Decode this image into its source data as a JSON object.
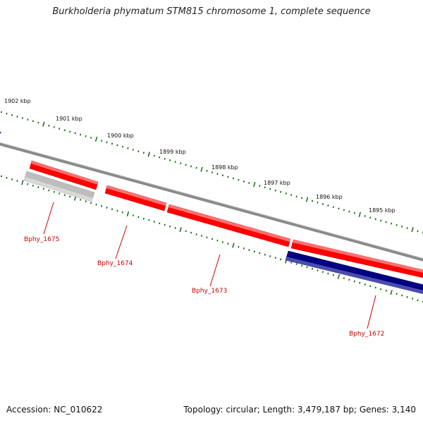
{
  "title": "Burkholderia phymatum STM815 chromosome 1, complete sequence",
  "footer": {
    "accession": "Accession: NC_010622",
    "topology": "Topology: circular; Length: 3,479,187 bp; Genes: 3,140"
  },
  "colors": {
    "backbone": "#7a7a7a",
    "gene_forward": "#ff0000",
    "gene_reverse": "#000080",
    "gene_grey": "#b4b4b4",
    "ticks": "#006400",
    "labels": "#cc0000"
  },
  "ruler": [
    {
      "label": "1902 kbp"
    },
    {
      "label": "1901 kbp"
    },
    {
      "label": "1900 kbp"
    },
    {
      "label": "1899 kbp"
    },
    {
      "label": "1898 kbp"
    },
    {
      "label": "1897 kbp"
    },
    {
      "label": "1896 kbp"
    },
    {
      "label": "1895 kbp"
    }
  ],
  "genes": [
    {
      "name": "Bphy_1675"
    },
    {
      "name": "Bphy_1674"
    },
    {
      "name": "Bphy_1673"
    },
    {
      "name": "Bphy_1672"
    }
  ]
}
